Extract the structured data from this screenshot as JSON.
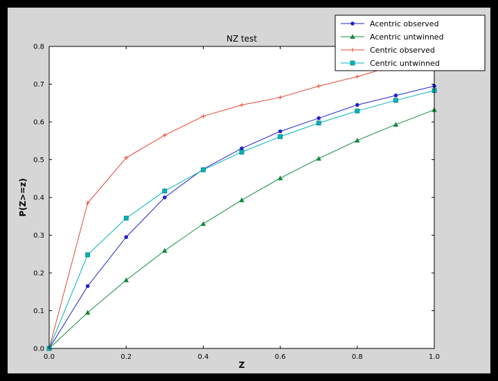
{
  "colors": {
    "window_background": "#000000",
    "figure_background": "#d6d6d6",
    "plot_background": "#ffffff",
    "axis_color": "#000000",
    "legend_background": "#ffffff"
  },
  "chart_data": {
    "type": "line",
    "title": "NZ test",
    "xlabel": "Z",
    "ylabel": "P(Z>=z)",
    "xlim": [
      0.0,
      1.0
    ],
    "ylim": [
      0.0,
      0.8
    ],
    "x_ticks": [
      "0.0",
      "0.2",
      "0.4",
      "0.6",
      "0.8",
      "1.0"
    ],
    "y_ticks": [
      "0.0",
      "0.1",
      "0.2",
      "0.3",
      "0.4",
      "0.5",
      "0.6",
      "0.7",
      "0.8"
    ],
    "grid": false,
    "legend_position": "upper right",
    "x": [
      0.0,
      0.1,
      0.2,
      0.3,
      0.4,
      0.5,
      0.6,
      0.7,
      0.8,
      0.9,
      1.0
    ],
    "series": [
      {
        "name": "Acentric observed",
        "color": "#2222cc",
        "marker": "circle",
        "values": [
          0.0,
          0.165,
          0.295,
          0.4,
          0.475,
          0.53,
          0.575,
          0.61,
          0.645,
          0.67,
          0.695
        ]
      },
      {
        "name": "Acentric untwinned",
        "color": "#118a3c",
        "marker": "triangle",
        "values": [
          0.0,
          0.095,
          0.181,
          0.259,
          0.33,
          0.393,
          0.451,
          0.503,
          0.551,
          0.593,
          0.632
        ]
      },
      {
        "name": "Centric observed",
        "color": "#e8432f",
        "marker": "plus",
        "values": [
          0.0,
          0.385,
          0.505,
          0.565,
          0.615,
          0.645,
          0.665,
          0.695,
          0.72,
          0.75,
          0.775
        ]
      },
      {
        "name": "Centric untwinned",
        "color": "#00b5bc",
        "marker": "square",
        "marker_edge": "#007f7f",
        "values": [
          0.0,
          0.248,
          0.345,
          0.417,
          0.473,
          0.52,
          0.561,
          0.597,
          0.629,
          0.657,
          0.683
        ]
      }
    ]
  }
}
